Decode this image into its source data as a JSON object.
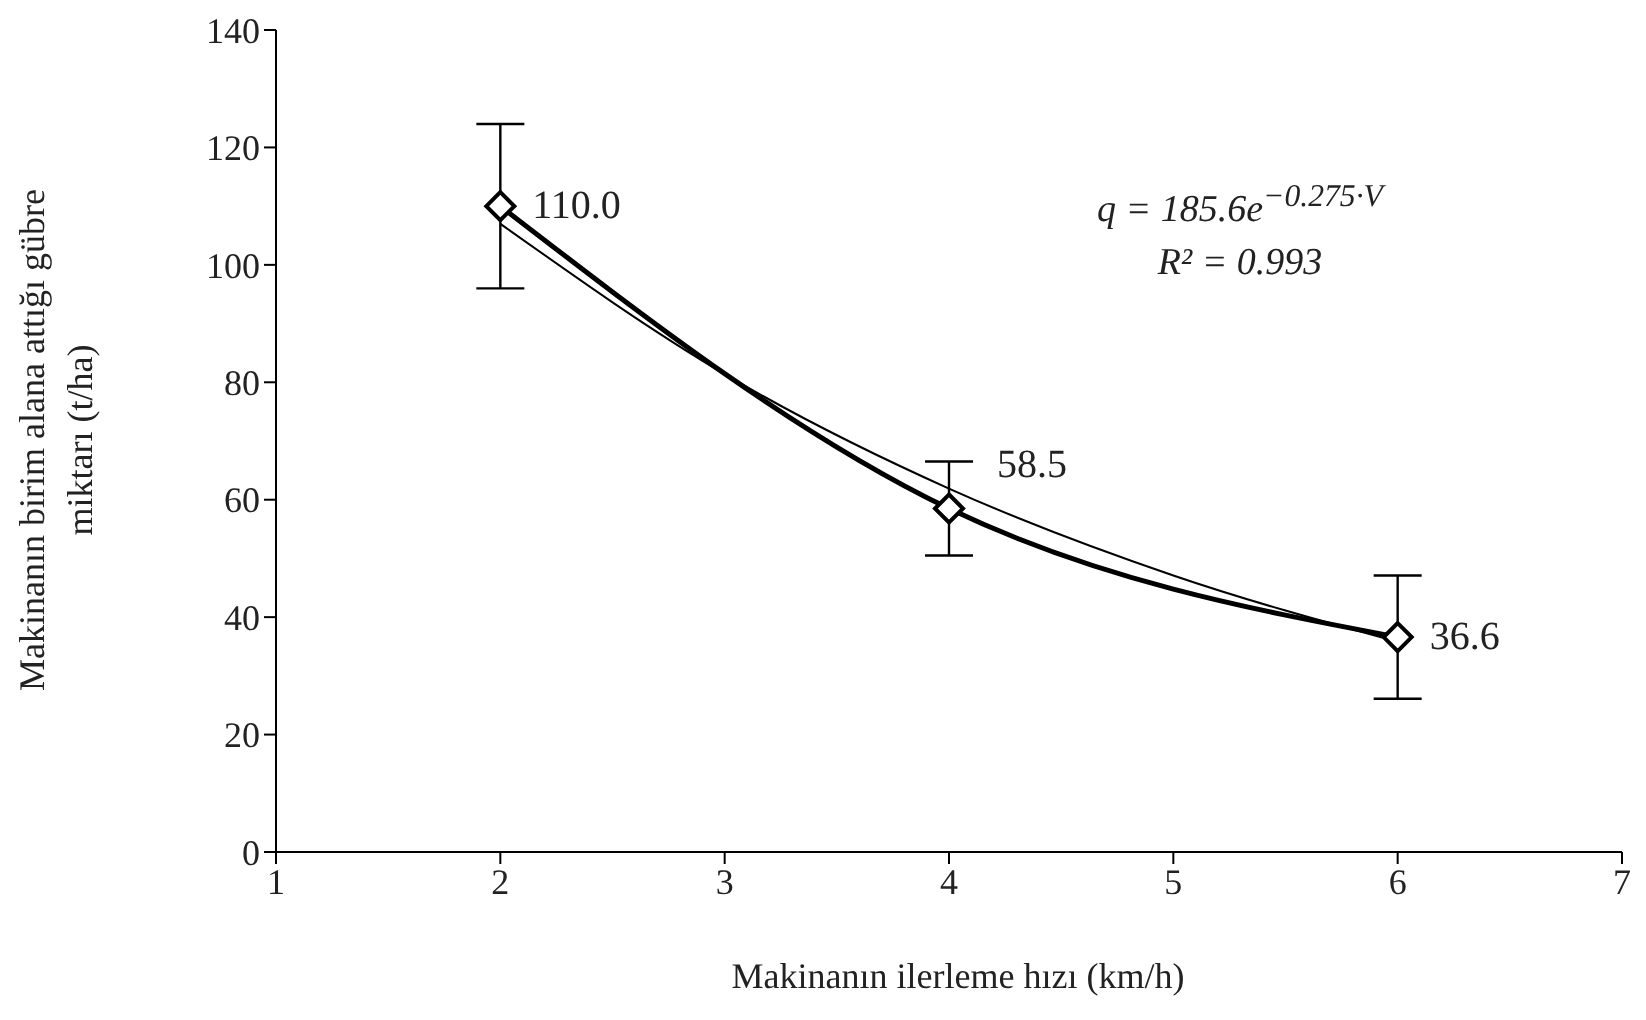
{
  "chart_data": {
    "type": "line",
    "xlabel": "Makinanın  ilerleme hızı  (km/h)",
    "ylabel": "Makinanın  birim alana attığı gübre\nmiktarı  (t/ha)",
    "xlim": [
      1,
      7
    ],
    "xticks": [
      1,
      2,
      3,
      4,
      5,
      6,
      7
    ],
    "ylim": [
      0,
      140
    ],
    "yticks": [
      0,
      20,
      40,
      60,
      80,
      100,
      120,
      140
    ],
    "marker": "diamond",
    "line_style": "solid",
    "series": [
      {
        "color": "#000000",
        "x": [
          2,
          4,
          6
        ],
        "values": [
          110.0,
          58.5,
          36.6
        ],
        "errors": [
          14,
          8,
          10.5
        ],
        "value_labels": [
          "110.0",
          "58.5",
          "36.6"
        ]
      },
      {
        "type": "line",
        "color": "#000000",
        "marker": "none",
        "x": [
          2,
          3,
          4,
          5,
          6
        ],
        "values": [
          107.0,
          81.4,
          61.9,
          47.1,
          35.8
        ]
      }
    ],
    "annotations": [
      "q = 185.6e$^{−0.275·V}$",
      "R² = 0.993"
    ]
  }
}
